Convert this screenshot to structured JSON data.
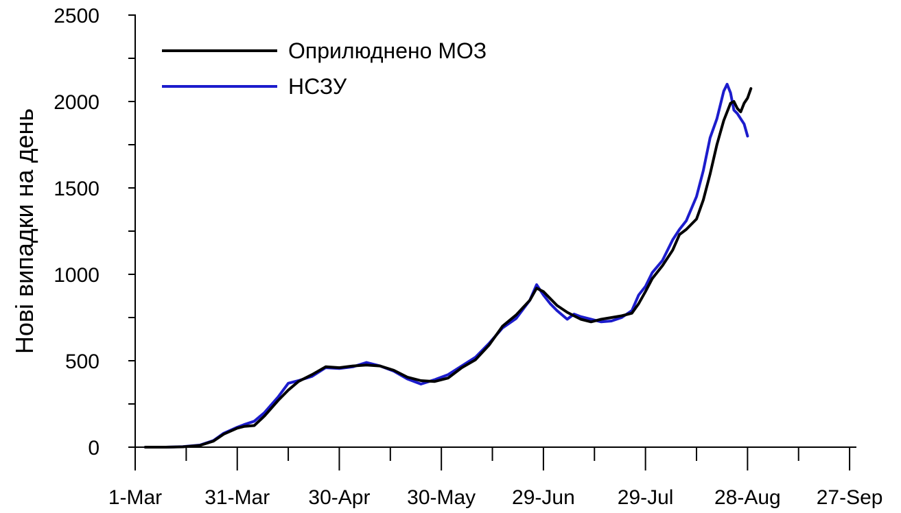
{
  "chart_data": {
    "type": "line",
    "title": "",
    "xlabel": "",
    "ylabel": "Нові випадки на день",
    "xlim": [
      "2020-03-01",
      "2020-09-29"
    ],
    "ylim": [
      0,
      2500
    ],
    "x_ticks": [
      "2020-03-01",
      "2020-03-31",
      "2020-04-30",
      "2020-05-30",
      "2020-06-29",
      "2020-07-29",
      "2020-08-28",
      "2020-09-27"
    ],
    "x_tick_labels": [
      "1-Mar",
      "31-Mar",
      "30-Apr",
      "30-May",
      "29-Jun",
      "29-Jul",
      "28-Aug",
      "27-Sep"
    ],
    "y_ticks": [
      0,
      500,
      1000,
      1500,
      2000,
      2500
    ],
    "y_tick_labels": [
      "0",
      "500",
      "1000",
      "1500",
      "2000",
      "2500"
    ],
    "grid": false,
    "legend_position": "top-left",
    "series": [
      {
        "name": "Оприлюднено МОЗ",
        "color": "#000000",
        "points": [
          [
            "2020-03-04",
            0
          ],
          [
            "2020-03-10",
            0
          ],
          [
            "2020-03-15",
            2
          ],
          [
            "2020-03-20",
            10
          ],
          [
            "2020-03-24",
            35
          ],
          [
            "2020-03-27",
            75
          ],
          [
            "2020-03-31",
            110
          ],
          [
            "2020-04-02",
            120
          ],
          [
            "2020-04-05",
            125
          ],
          [
            "2020-04-08",
            180
          ],
          [
            "2020-04-12",
            270
          ],
          [
            "2020-04-15",
            330
          ],
          [
            "2020-04-18",
            380
          ],
          [
            "2020-04-22",
            420
          ],
          [
            "2020-04-26",
            465
          ],
          [
            "2020-04-30",
            460
          ],
          [
            "2020-05-04",
            470
          ],
          [
            "2020-05-08",
            475
          ],
          [
            "2020-05-12",
            470
          ],
          [
            "2020-05-16",
            445
          ],
          [
            "2020-05-20",
            405
          ],
          [
            "2020-05-24",
            385
          ],
          [
            "2020-05-28",
            380
          ],
          [
            "2020-06-01",
            400
          ],
          [
            "2020-06-05",
            460
          ],
          [
            "2020-06-09",
            505
          ],
          [
            "2020-06-13",
            590
          ],
          [
            "2020-06-17",
            700
          ],
          [
            "2020-06-21",
            765
          ],
          [
            "2020-06-25",
            850
          ],
          [
            "2020-06-27",
            920
          ],
          [
            "2020-06-29",
            900
          ],
          [
            "2020-07-01",
            860
          ],
          [
            "2020-07-03",
            820
          ],
          [
            "2020-07-06",
            780
          ],
          [
            "2020-07-08",
            760
          ],
          [
            "2020-07-10",
            740
          ],
          [
            "2020-07-13",
            725
          ],
          [
            "2020-07-16",
            740
          ],
          [
            "2020-07-19",
            750
          ],
          [
            "2020-07-22",
            760
          ],
          [
            "2020-07-25",
            775
          ],
          [
            "2020-07-27",
            830
          ],
          [
            "2020-07-29",
            900
          ],
          [
            "2020-07-31",
            975
          ],
          [
            "2020-08-03",
            1050
          ],
          [
            "2020-08-06",
            1140
          ],
          [
            "2020-08-08",
            1230
          ],
          [
            "2020-08-10",
            1260
          ],
          [
            "2020-08-13",
            1320
          ],
          [
            "2020-08-15",
            1430
          ],
          [
            "2020-08-17",
            1580
          ],
          [
            "2020-08-19",
            1750
          ],
          [
            "2020-08-21",
            1890
          ],
          [
            "2020-08-23",
            1990
          ],
          [
            "2020-08-24",
            2000
          ],
          [
            "2020-08-25",
            1960
          ],
          [
            "2020-08-26",
            1940
          ],
          [
            "2020-08-27",
            1990
          ],
          [
            "2020-08-28",
            2020
          ],
          [
            "2020-08-29",
            2075
          ]
        ]
      },
      {
        "name": "НСЗУ",
        "color": "#1c1ccc",
        "points": [
          [
            "2020-03-04",
            0
          ],
          [
            "2020-03-10",
            0
          ],
          [
            "2020-03-15",
            3
          ],
          [
            "2020-03-20",
            12
          ],
          [
            "2020-03-24",
            38
          ],
          [
            "2020-03-27",
            80
          ],
          [
            "2020-03-31",
            115
          ],
          [
            "2020-04-02",
            130
          ],
          [
            "2020-04-05",
            150
          ],
          [
            "2020-04-08",
            200
          ],
          [
            "2020-04-12",
            290
          ],
          [
            "2020-04-15",
            370
          ],
          [
            "2020-04-18",
            385
          ],
          [
            "2020-04-22",
            410
          ],
          [
            "2020-04-26",
            460
          ],
          [
            "2020-04-30",
            455
          ],
          [
            "2020-05-04",
            465
          ],
          [
            "2020-05-08",
            490
          ],
          [
            "2020-05-12",
            470
          ],
          [
            "2020-05-16",
            440
          ],
          [
            "2020-05-20",
            395
          ],
          [
            "2020-05-24",
            365
          ],
          [
            "2020-05-28",
            390
          ],
          [
            "2020-06-01",
            420
          ],
          [
            "2020-06-05",
            470
          ],
          [
            "2020-06-09",
            520
          ],
          [
            "2020-06-13",
            600
          ],
          [
            "2020-06-17",
            690
          ],
          [
            "2020-06-21",
            745
          ],
          [
            "2020-06-25",
            850
          ],
          [
            "2020-06-27",
            940
          ],
          [
            "2020-06-29",
            880
          ],
          [
            "2020-07-01",
            830
          ],
          [
            "2020-07-03",
            790
          ],
          [
            "2020-07-06",
            740
          ],
          [
            "2020-07-08",
            770
          ],
          [
            "2020-07-10",
            755
          ],
          [
            "2020-07-13",
            740
          ],
          [
            "2020-07-16",
            725
          ],
          [
            "2020-07-19",
            730
          ],
          [
            "2020-07-22",
            750
          ],
          [
            "2020-07-25",
            790
          ],
          [
            "2020-07-27",
            880
          ],
          [
            "2020-07-29",
            930
          ],
          [
            "2020-07-31",
            1010
          ],
          [
            "2020-08-03",
            1080
          ],
          [
            "2020-08-06",
            1200
          ],
          [
            "2020-08-08",
            1260
          ],
          [
            "2020-08-10",
            1310
          ],
          [
            "2020-08-13",
            1450
          ],
          [
            "2020-08-15",
            1600
          ],
          [
            "2020-08-17",
            1790
          ],
          [
            "2020-08-19",
            1900
          ],
          [
            "2020-08-21",
            2060
          ],
          [
            "2020-08-22",
            2100
          ],
          [
            "2020-08-23",
            2050
          ],
          [
            "2020-08-24",
            1950
          ],
          [
            "2020-08-25",
            1930
          ],
          [
            "2020-08-26",
            1900
          ],
          [
            "2020-08-27",
            1870
          ],
          [
            "2020-08-28",
            1800
          ]
        ]
      }
    ]
  }
}
